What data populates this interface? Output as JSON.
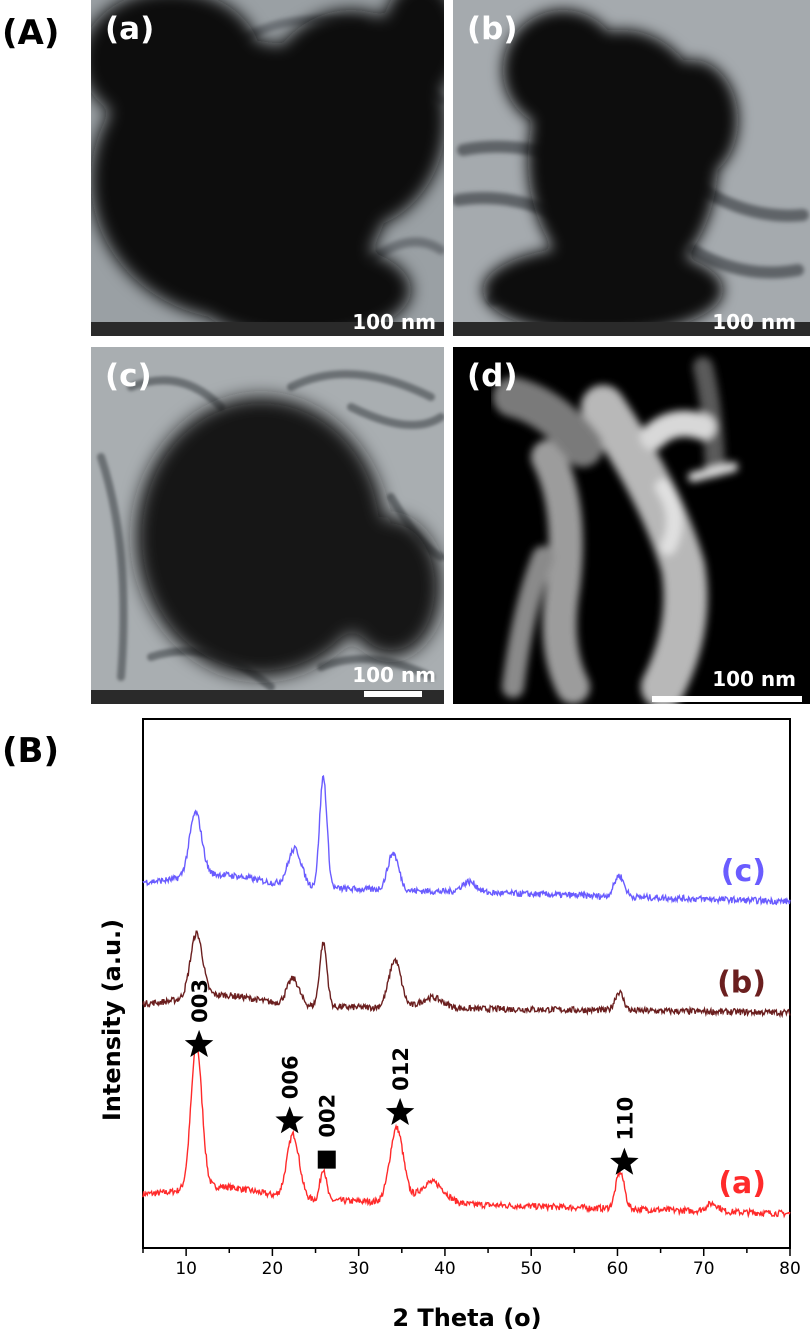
{
  "figure": {
    "panel_A_label": "(A)",
    "panel_B_label": "(B)"
  },
  "tem_images": [
    {
      "label": "(a)",
      "scale": "100 nm",
      "mode": "bright-field"
    },
    {
      "label": "(b)",
      "scale": "100 nm",
      "mode": "bright-field"
    },
    {
      "label": "(c)",
      "scale": "100 nm",
      "mode": "bright-field"
    },
    {
      "label": "(d)",
      "scale": "100 nm",
      "mode": "dark-field"
    }
  ],
  "chart_data": {
    "type": "line",
    "title": "",
    "xlabel": "2 Theta (o)",
    "ylabel": "Intensity (a.u.)",
    "xlim": [
      5,
      80
    ],
    "xticks": [
      10,
      20,
      30,
      40,
      50,
      60,
      70,
      80
    ],
    "ylim": [
      0,
      1
    ],
    "grid": false,
    "legend": "none",
    "series": [
      {
        "name": "(a)",
        "color": "#ff2a2a",
        "baseline": 0.1,
        "peaks": [
          {
            "x": 11.2,
            "h": 0.27,
            "w": 0.9
          },
          {
            "x": 22.4,
            "h": 0.12,
            "w": 1.0
          },
          {
            "x": 25.9,
            "h": 0.06,
            "w": 0.5
          },
          {
            "x": 34.4,
            "h": 0.14,
            "w": 1.1
          },
          {
            "x": 38.5,
            "h": 0.04,
            "w": 2.0
          },
          {
            "x": 60.3,
            "h": 0.07,
            "w": 0.7
          },
          {
            "x": 71.0,
            "h": 0.015,
            "w": 1.0
          }
        ],
        "end": 0.065
      },
      {
        "name": "(b)",
        "color": "#6b1f1f",
        "baseline": 0.46,
        "peaks": [
          {
            "x": 11.2,
            "h": 0.12,
            "w": 1.0
          },
          {
            "x": 22.4,
            "h": 0.05,
            "w": 1.0
          },
          {
            "x": 25.9,
            "h": 0.12,
            "w": 0.6
          },
          {
            "x": 34.2,
            "h": 0.09,
            "w": 1.0
          },
          {
            "x": 38.5,
            "h": 0.02,
            "w": 1.8
          },
          {
            "x": 60.2,
            "h": 0.035,
            "w": 0.7
          }
        ],
        "end": 0.445
      },
      {
        "name": "(c)",
        "color": "#6a5cff",
        "baseline": 0.69,
        "peaks": [
          {
            "x": 11.1,
            "h": 0.12,
            "w": 1.0
          },
          {
            "x": 22.6,
            "h": 0.07,
            "w": 1.1
          },
          {
            "x": 25.9,
            "h": 0.21,
            "w": 0.6
          },
          {
            "x": 34.0,
            "h": 0.07,
            "w": 0.9
          },
          {
            "x": 42.8,
            "h": 0.02,
            "w": 1.2
          },
          {
            "x": 60.2,
            "h": 0.04,
            "w": 0.8
          }
        ],
        "end": 0.655
      }
    ],
    "annotations": [
      {
        "marker": "star",
        "label": "003",
        "x": 11.5
      },
      {
        "marker": "star",
        "label": "006",
        "x": 22.0
      },
      {
        "marker": "square",
        "label": "002",
        "x": 26.3
      },
      {
        "marker": "star",
        "label": "012",
        "x": 34.8
      },
      {
        "marker": "star",
        "label": "110",
        "x": 60.8
      }
    ]
  }
}
